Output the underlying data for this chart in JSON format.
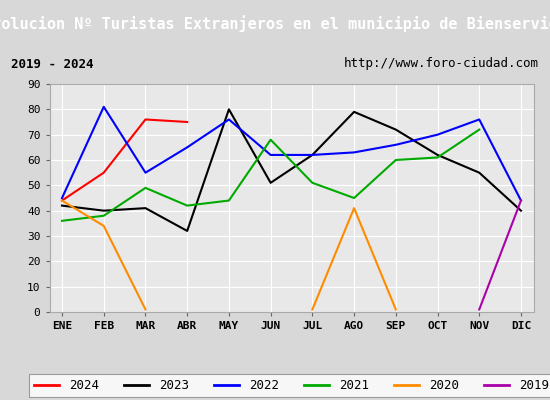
{
  "title": "Evolucion Nº Turistas Extranjeros en el municipio de Bienservida",
  "subtitle_left": "2019 - 2024",
  "subtitle_right": "http://www.foro-ciudad.com",
  "months": [
    "ENE",
    "FEB",
    "MAR",
    "ABR",
    "MAY",
    "JUN",
    "JUL",
    "AGO",
    "SEP",
    "OCT",
    "NOV",
    "DIC"
  ],
  "series": {
    "2024": {
      "color": "#ff0000",
      "data": [
        44,
        55,
        76,
        75,
        null,
        null,
        null,
        null,
        null,
        null,
        null,
        null
      ]
    },
    "2023": {
      "color": "#000000",
      "data": [
        42,
        40,
        41,
        32,
        80,
        51,
        62,
        79,
        72,
        62,
        55,
        40
      ]
    },
    "2022": {
      "color": "#0000ff",
      "data": [
        45,
        81,
        55,
        65,
        76,
        62,
        62,
        63,
        66,
        70,
        76,
        44
      ]
    },
    "2021": {
      "color": "#00aa00",
      "data": [
        36,
        38,
        49,
        42,
        44,
        68,
        51,
        45,
        60,
        61,
        72,
        null
      ]
    },
    "2020": {
      "color": "#ff8c00",
      "data": [
        44,
        34,
        1,
        null,
        null,
        null,
        1,
        41,
        1,
        null,
        null,
        null
      ]
    },
    "2019": {
      "color": "#aa00aa",
      "data": [
        null,
        null,
        null,
        null,
        null,
        null,
        null,
        null,
        null,
        null,
        1,
        44
      ]
    }
  },
  "ylim": [
    0,
    90
  ],
  "yticks": [
    0,
    10,
    20,
    30,
    40,
    50,
    60,
    70,
    80,
    90
  ],
  "background_color": "#d8d8d8",
  "plot_bg_color": "#e8e8e8",
  "title_bg_color": "#4472c4",
  "title_color": "#ffffff",
  "subtitle_bg_color": "#ffffff",
  "grid_color": "#ffffff",
  "legend_fontsize": 9,
  "title_fontsize": 11,
  "subtitle_fontsize": 9
}
